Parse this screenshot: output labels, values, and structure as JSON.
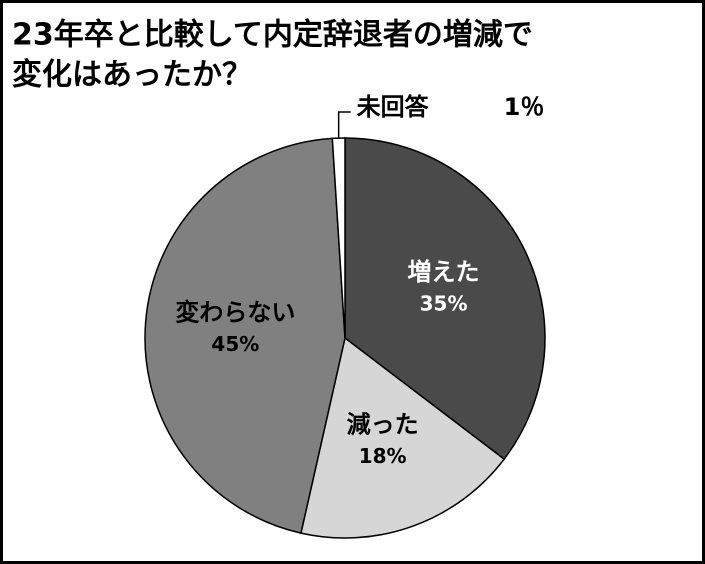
{
  "chart_data": {
    "type": "pie",
    "title": [
      "23年卒と比較して内定辞退者の増減で",
      "変化はあったか？"
    ],
    "categories": [
      "増えた",
      "減った",
      "変わらない",
      "未回答"
    ],
    "values": [
      35,
      18,
      45,
      1
    ],
    "value_labels": [
      "35%",
      "18%",
      "45%",
      "1％"
    ],
    "colors": [
      "#4a4a4a",
      "#d6d6d6",
      "#808080",
      "#ffffff"
    ]
  }
}
